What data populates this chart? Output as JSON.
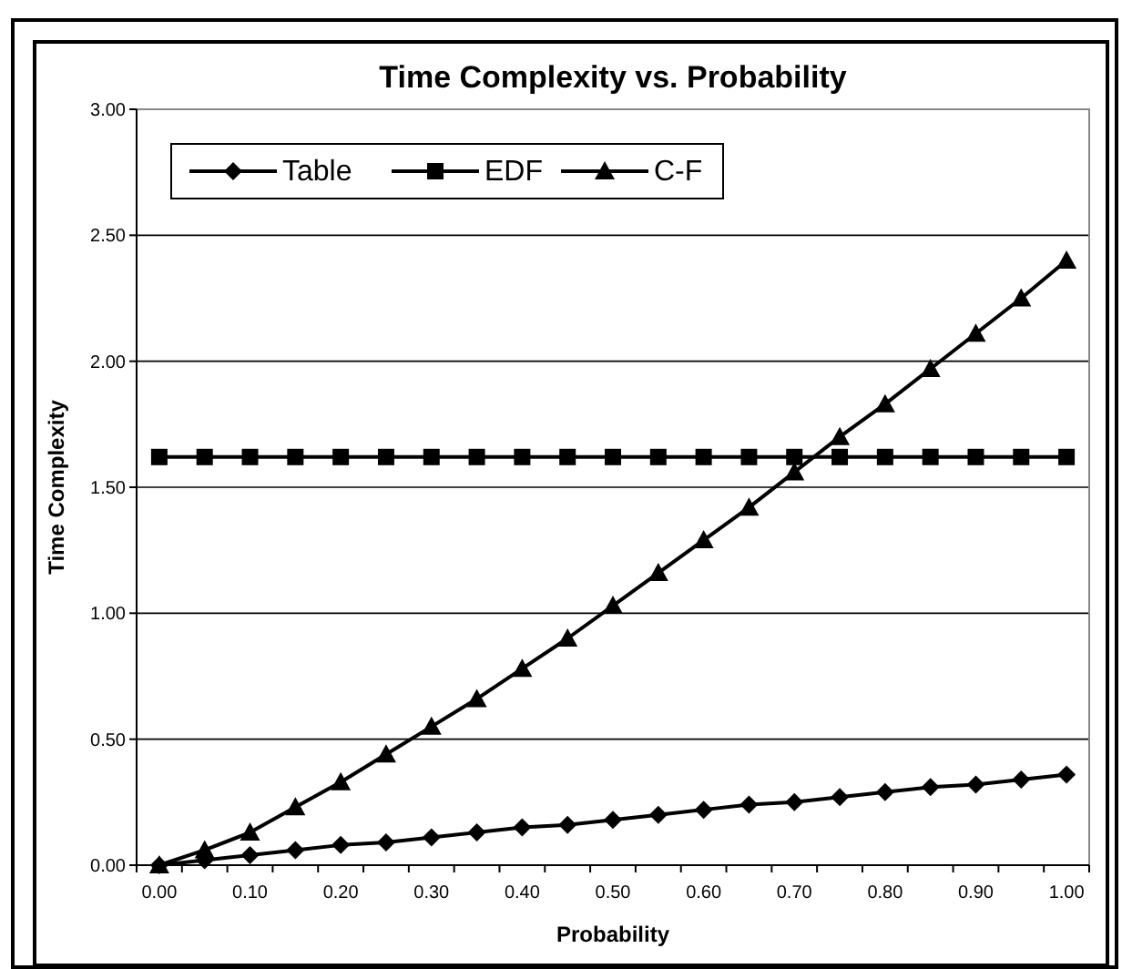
{
  "chart_data": {
    "type": "line",
    "title": "Time Complexity vs. Probability",
    "xlabel": "Probability",
    "ylabel": "Time Complexity",
    "categories": [
      "0.00",
      null,
      "0.10",
      null,
      "0.20",
      null,
      "0.30",
      null,
      "0.40",
      null,
      "0.50",
      null,
      "0.60",
      null,
      "0.70",
      null,
      "0.80",
      null,
      "0.90",
      null,
      "1.00"
    ],
    "series": [
      {
        "name": "Table",
        "color": "#000000",
        "marker": "diamond",
        "values": [
          0,
          0.02,
          0.04,
          0.06,
          0.08,
          0.09,
          0.11,
          0.13,
          0.15,
          0.16,
          0.18,
          0.2,
          0.22,
          0.24,
          0.25,
          0.27,
          0.29,
          0.31,
          0.32,
          0.34,
          0.36
        ]
      },
      {
        "name": "EDF",
        "color": "#000000",
        "marker": "square",
        "values": [
          1.62,
          1.62,
          1.62,
          1.62,
          1.62,
          1.62,
          1.62,
          1.62,
          1.62,
          1.62,
          1.62,
          1.62,
          1.62,
          1.62,
          1.62,
          1.62,
          1.62,
          1.62,
          1.62,
          1.62,
          1.62
        ]
      },
      {
        "name": "C-F",
        "color": "#000000",
        "marker": "triangle",
        "values": [
          0,
          0.06,
          0.13,
          0.23,
          0.33,
          0.44,
          0.55,
          0.66,
          0.78,
          0.9,
          1.03,
          1.16,
          1.29,
          1.42,
          1.56,
          1.7,
          1.83,
          1.97,
          2.11,
          2.25,
          2.4
        ]
      }
    ],
    "ylim": [
      0,
      3
    ],
    "yticks": [
      {
        "value": 0,
        "label": "0.00"
      },
      {
        "value": 0.5,
        "label": "0.50"
      },
      {
        "value": 1,
        "label": "1.00"
      },
      {
        "value": 1.5,
        "label": "1.50"
      },
      {
        "value": 2,
        "label": "2.00"
      },
      {
        "value": 2.5,
        "label": "2.50"
      },
      {
        "value": 3,
        "label": "3.00"
      }
    ],
    "grid": "y",
    "legend": "top left"
  }
}
